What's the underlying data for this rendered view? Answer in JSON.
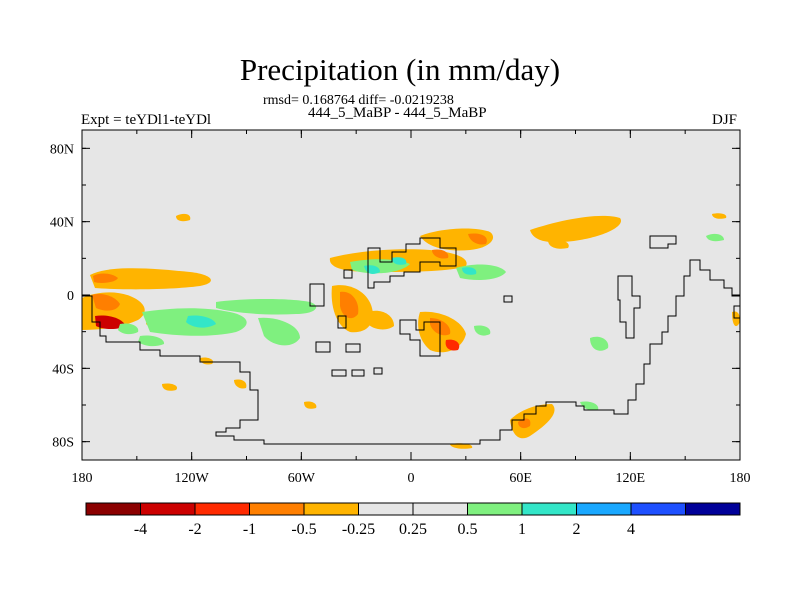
{
  "title": "Precipitation (in mm/day)",
  "stats": "rmsd= 0.168764 diff= -0.0219238",
  "case": "444_5_MaBP - 444_5_MaBP",
  "expt": "Expt = teYDl1-teYDl",
  "season": "DJF",
  "lon_ticks": [
    "180",
    "120W",
    "60W",
    "0",
    "60E",
    "120E",
    "180"
  ],
  "lat_ticks": [
    "80N",
    "40N",
    "0",
    "40S",
    "80S"
  ],
  "colorbar": {
    "colors": [
      "#8b0000",
      "#cc0000",
      "#ff2a00",
      "#ff7f00",
      "#ffb400",
      "#e6e6e6",
      "#e6e6e6",
      "#7ff07f",
      "#33e6c8",
      "#1aa8ff",
      "#1e50ff",
      "#000099"
    ],
    "labels": [
      "-4",
      "-2",
      "-1",
      "-0.5",
      "-0.25",
      "0.25",
      "0.5",
      "1",
      "2",
      "4"
    ]
  },
  "colors": {
    "background": "#e6e6e6",
    "orange": "#ffb400",
    "red_orange": "#ff7f00",
    "red": "#ff2a00",
    "green": "#7ff07f",
    "cyan": "#33e6c8"
  }
}
